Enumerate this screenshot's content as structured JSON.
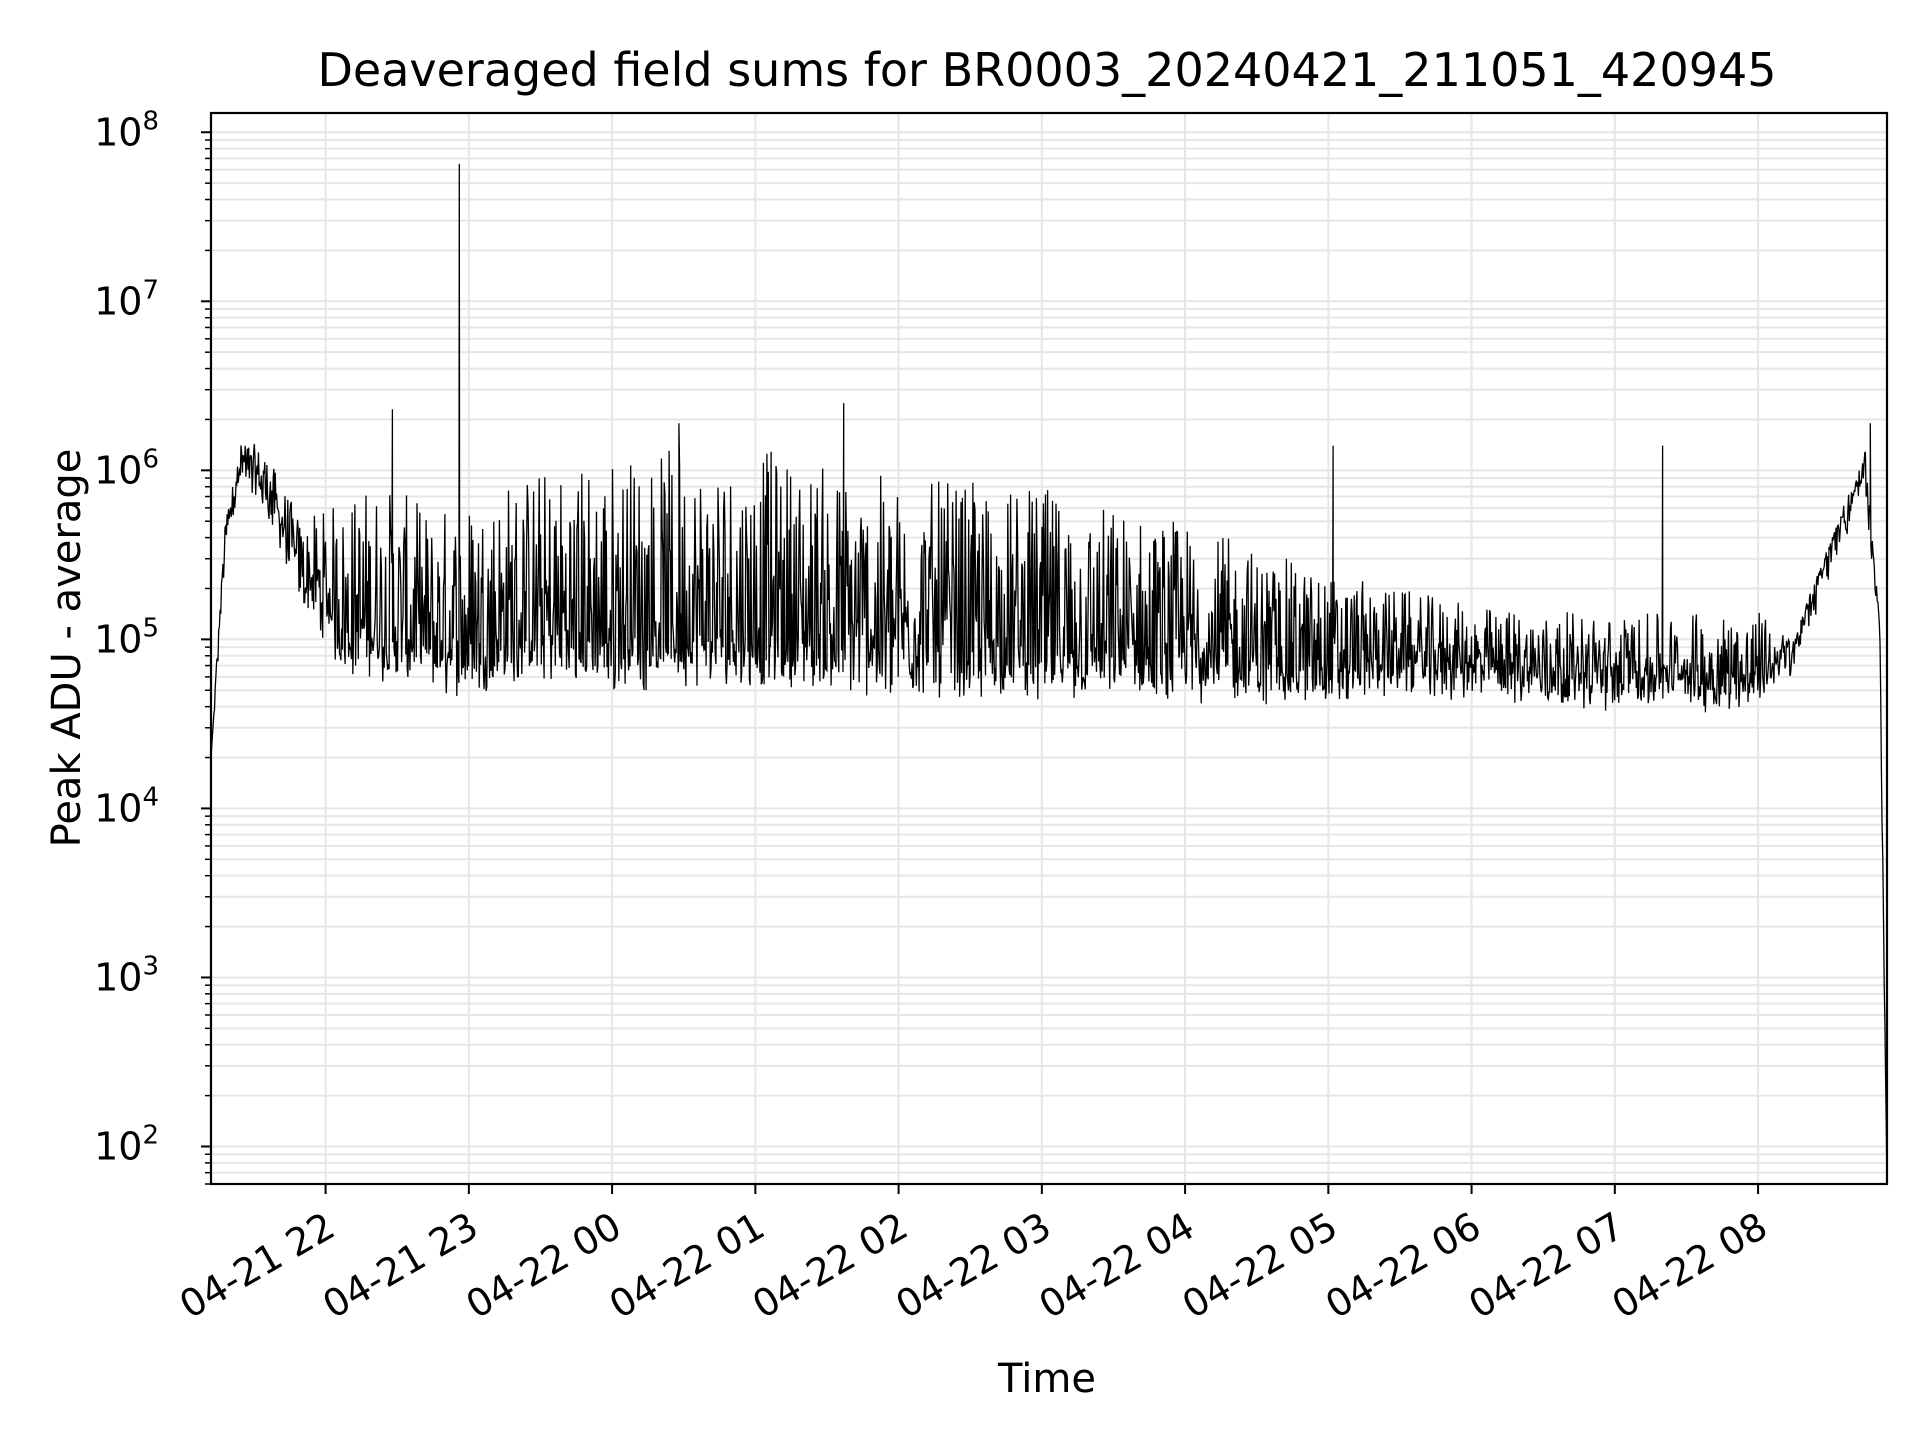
{
  "chart_data": {
    "type": "line",
    "title": "Deaveraged field sums for BR0003_20240421_211051_420945",
    "xlabel": "Time",
    "ylabel": "Peak ADU - average",
    "yscale": "log",
    "ylim": [
      60,
      130000000
    ],
    "xlim": [
      "2024-04-21 21:12",
      "2024-04-22 08:54"
    ],
    "grid": true,
    "color": "#000000",
    "y_ticks": [
      {
        "base": "10",
        "exp": "2",
        "value": 100
      },
      {
        "base": "10",
        "exp": "3",
        "value": 1000
      },
      {
        "base": "10",
        "exp": "4",
        "value": 10000
      },
      {
        "base": "10",
        "exp": "5",
        "value": 100000
      },
      {
        "base": "10",
        "exp": "6",
        "value": 1000000
      },
      {
        "base": "10",
        "exp": "7",
        "value": 10000000
      },
      {
        "base": "10",
        "exp": "8",
        "value": 100000000
      }
    ],
    "x_ticks": [
      {
        "label": "04-21 22",
        "time": "2024-04-21 22:00"
      },
      {
        "label": "04-21 23",
        "time": "2024-04-21 23:00"
      },
      {
        "label": "04-22 00",
        "time": "2024-04-22 00:00"
      },
      {
        "label": "04-22 01",
        "time": "2024-04-22 01:00"
      },
      {
        "label": "04-22 02",
        "time": "2024-04-22 02:00"
      },
      {
        "label": "04-22 03",
        "time": "2024-04-22 03:00"
      },
      {
        "label": "04-22 04",
        "time": "2024-04-22 04:00"
      },
      {
        "label": "04-22 05",
        "time": "2024-04-22 05:00"
      },
      {
        "label": "04-22 06",
        "time": "2024-04-22 06:00"
      },
      {
        "label": "04-22 07",
        "time": "2024-04-22 07:00"
      },
      {
        "label": "04-22 08",
        "time": "2024-04-22 08:00"
      }
    ],
    "envelope": {
      "baseline": [
        [
          "2024-04-21 21:12",
          20000
        ],
        [
          "2024-04-21 21:18",
          400000
        ],
        [
          "2024-04-21 21:25",
          1000000
        ],
        [
          "2024-04-21 21:35",
          700000
        ],
        [
          "2024-04-21 21:50",
          200000
        ],
        [
          "2024-04-21 22:00",
          120000
        ],
        [
          "2024-04-21 22:10",
          75000
        ],
        [
          "2024-04-21 22:30",
          70000
        ],
        [
          "2024-04-21 22:50",
          60000
        ],
        [
          "2024-04-21 23:20",
          70000
        ],
        [
          "2024-04-22 00:00",
          65000
        ],
        [
          "2024-04-22 01:00",
          65000
        ],
        [
          "2024-04-22 02:00",
          60000
        ],
        [
          "2024-04-22 03:00",
          55000
        ],
        [
          "2024-04-22 04:00",
          55000
        ],
        [
          "2024-04-22 05:00",
          52000
        ],
        [
          "2024-04-22 05:30",
          60000
        ],
        [
          "2024-04-22 06:00",
          55000
        ],
        [
          "2024-04-22 07:00",
          50000
        ],
        [
          "2024-04-22 08:00",
          48000
        ],
        [
          "2024-04-22 08:15",
          80000
        ],
        [
          "2024-04-22 08:30",
          300000
        ],
        [
          "2024-04-22 08:45",
          900000
        ],
        [
          "2024-04-22 08:51",
          100000
        ],
        [
          "2024-04-22 08:54",
          60
        ]
      ],
      "peak": [
        [
          "2024-04-21 21:12",
          20000
        ],
        [
          "2024-04-21 21:18",
          500000
        ],
        [
          "2024-04-21 21:25",
          1600000
        ],
        [
          "2024-04-21 21:35",
          1300000
        ],
        [
          "2024-04-21 21:50",
          500000
        ],
        [
          "2024-04-21 22:00",
          600000
        ],
        [
          "2024-04-21 22:20",
          900000
        ],
        [
          "2024-04-21 22:45",
          600000
        ],
        [
          "2024-04-21 23:20",
          1000000
        ],
        [
          "2024-04-22 00:00",
          1300000
        ],
        [
          "2024-04-22 01:00",
          1400000
        ],
        [
          "2024-04-22 01:30",
          1100000
        ],
        [
          "2024-04-22 02:00",
          900000
        ],
        [
          "2024-04-22 03:00",
          800000
        ],
        [
          "2024-04-22 04:00",
          500000
        ],
        [
          "2024-04-22 04:30",
          350000
        ],
        [
          "2024-04-22 05:00",
          250000
        ],
        [
          "2024-04-22 06:00",
          160000
        ],
        [
          "2024-04-22 07:00",
          140000
        ],
        [
          "2024-04-22 08:00",
          150000
        ],
        [
          "2024-04-22 08:15",
          100000
        ],
        [
          "2024-04-22 08:30",
          400000
        ],
        [
          "2024-04-22 08:45",
          1300000
        ],
        [
          "2024-04-22 08:51",
          120000
        ],
        [
          "2024-04-22 08:54",
          60
        ]
      ]
    },
    "spikes": [
      [
        "2024-04-21 22:28",
        2300000
      ],
      [
        "2024-04-21 22:56",
        65000000
      ],
      [
        "2024-04-22 00:28",
        1900000
      ],
      [
        "2024-04-22 01:37",
        2500000
      ],
      [
        "2024-04-22 05:02",
        1400000
      ],
      [
        "2024-04-22 07:20",
        1400000
      ],
      [
        "2024-04-22 08:47",
        1900000
      ]
    ]
  }
}
